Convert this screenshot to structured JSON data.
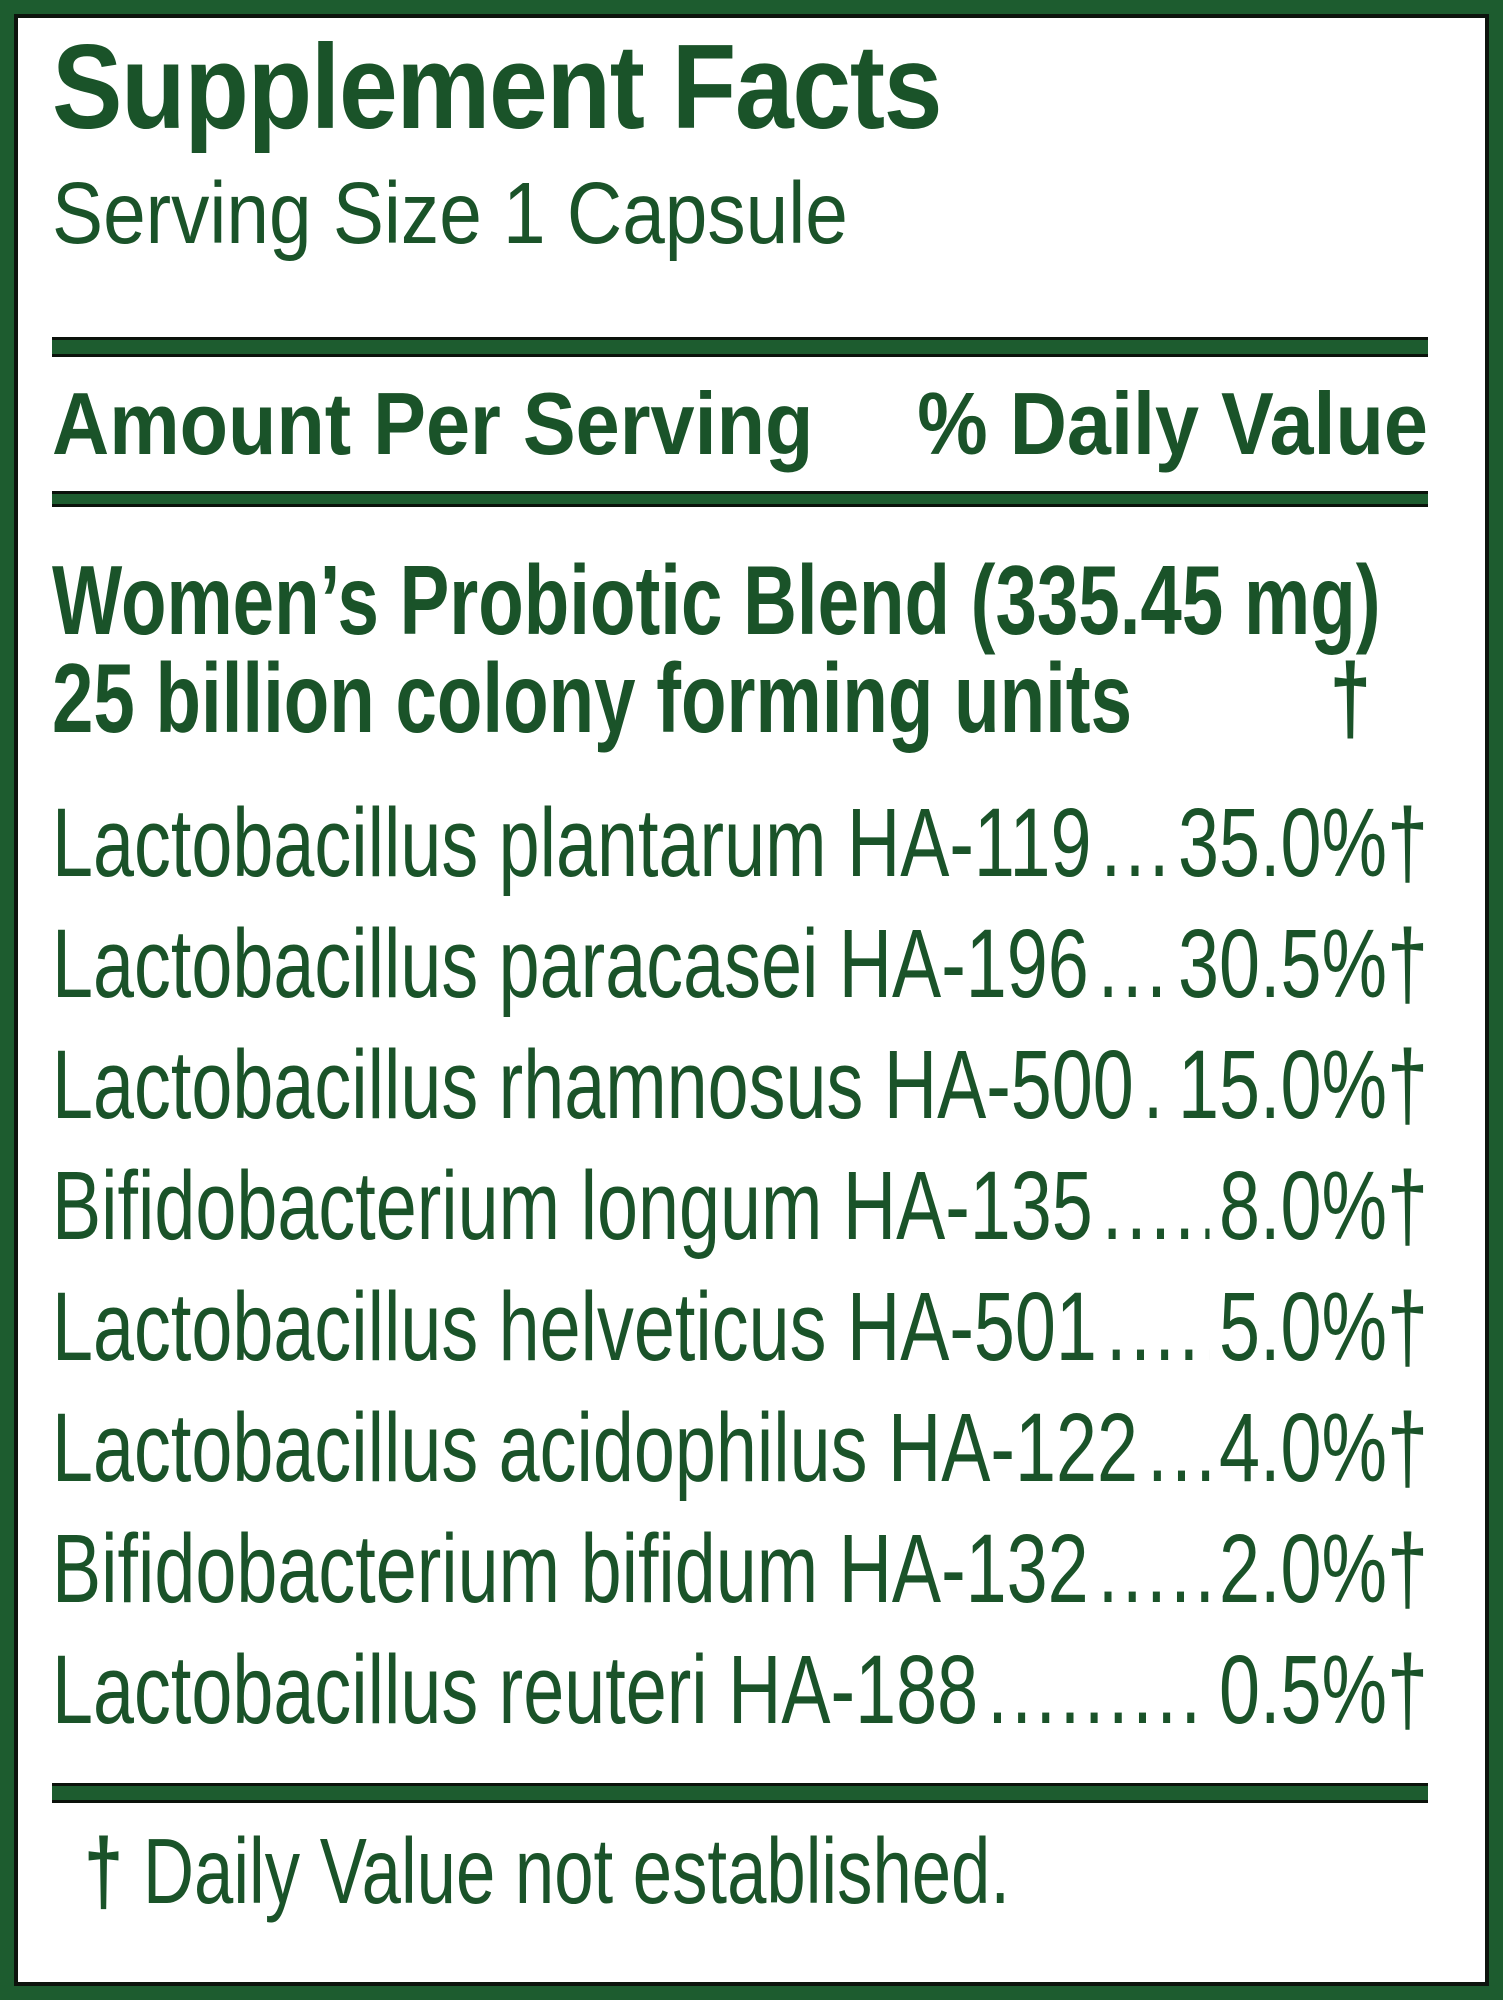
{
  "supplement_label": {
    "title": "Supplement Facts",
    "serving_size": "Serving Size 1 Capsule",
    "columns": {
      "amount": "Amount Per Serving",
      "daily_value": "% Daily Value"
    },
    "blend": {
      "name": "Women’s Probiotic Blend (335.45 mg)",
      "units": "25 billion colony forming units",
      "daily_value_symbol": "†"
    },
    "ingredients": [
      {
        "name": "Lactobacillus plantarum HA-119",
        "dots": "...",
        "value": "35.0%†"
      },
      {
        "name": "Lactobacillus paracasei HA-196",
        "dots": ".....",
        "value": "30.5%†"
      },
      {
        "name": "Lactobacillus rhamnosus HA-500",
        "dots": "...",
        "value": "15.0%†"
      },
      {
        "name": "Bifidobacterium longum HA-135",
        "dots": ".....",
        "value": "8.0%†"
      },
      {
        "name": "Lactobacillus helveticus HA-501",
        "dots": "......",
        "value": "5.0%†"
      },
      {
        "name": "Lactobacillus acidophilus HA-122",
        "dots": "....",
        "value": "4.0%†"
      },
      {
        "name": "Bifidobacterium bifidum HA-132",
        "dots": ".....",
        "value": "2.0%†"
      },
      {
        "name": "Lactobacillus reuteri HA-188",
        "dots": "............",
        "value": "0.5%†"
      }
    ],
    "footnote": {
      "dagger": "†",
      "text": "Daily Value not established."
    },
    "colors": {
      "text_green": "#1a5329",
      "bar_green": "#1d5c2f",
      "border_green": "#1d5c2f",
      "edge_black": "#0d140d"
    }
  }
}
